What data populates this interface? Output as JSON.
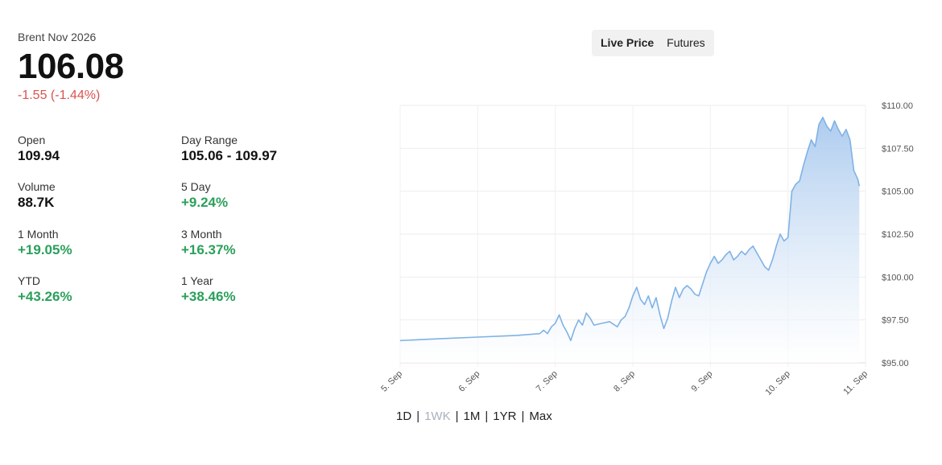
{
  "header": {
    "instrument": "Brent Nov 2026",
    "price": "106.08",
    "change": "-1.55 (-1.44%)",
    "change_color": "#d9534f"
  },
  "stats": [
    {
      "label": "Open",
      "value": "109.94",
      "positive": false
    },
    {
      "label": "Day Range",
      "value": "105.06 - 109.97",
      "positive": false
    },
    {
      "label": "Volume",
      "value": "88.7K",
      "positive": false
    },
    {
      "label": "5 Day",
      "value": "+9.24%",
      "positive": true
    },
    {
      "label": "1 Month",
      "value": "+19.05%",
      "positive": true
    },
    {
      "label": "3 Month",
      "value": "+16.37%",
      "positive": true
    },
    {
      "label": "YTD",
      "value": "+43.26%",
      "positive": true
    },
    {
      "label": "1 Year",
      "value": "+38.46%",
      "positive": true
    }
  ],
  "toggle": {
    "options": [
      "Live Price",
      "Futures"
    ],
    "active": "Live Price"
  },
  "ranges": {
    "options": [
      "1D",
      "1WK",
      "1M",
      "1YR",
      "Max"
    ],
    "active": "1WK"
  },
  "chart_data": {
    "type": "area",
    "title": "",
    "xlabel": "",
    "ylabel": "",
    "x_ticks": [
      "5. Sep",
      "6. Sep",
      "7. Sep",
      "8. Sep",
      "9. Sep",
      "10. Sep",
      "11. Sep"
    ],
    "x_range": [
      5.0,
      11.0
    ],
    "y_ticks": [
      "$95.00",
      "$97.50",
      "$100.00",
      "$102.50",
      "$105.00",
      "$107.50",
      "$110.00"
    ],
    "ylim": [
      95,
      110
    ],
    "grid": true,
    "line_color": "#7fb2e5",
    "fill_color": "#d6e6f7",
    "series": [
      {
        "x": [
          5.0,
          5.5,
          6.0,
          6.5,
          6.8,
          6.85,
          6.9,
          6.95,
          7.0,
          7.05,
          7.1,
          7.15,
          7.2,
          7.25,
          7.3,
          7.35,
          7.4,
          7.45,
          7.5,
          7.6,
          7.7,
          7.8,
          7.85,
          7.9,
          7.95,
          8.0,
          8.05,
          8.1,
          8.15,
          8.2,
          8.25,
          8.3,
          8.35,
          8.4,
          8.45,
          8.5,
          8.55,
          8.6,
          8.65,
          8.7,
          8.75,
          8.8,
          8.85,
          8.9,
          8.95,
          9.0,
          9.05,
          9.1,
          9.15,
          9.2,
          9.25,
          9.3,
          9.35,
          9.4,
          9.45,
          9.5,
          9.55,
          9.6,
          9.65,
          9.7,
          9.75,
          9.8,
          9.85,
          9.9,
          9.95,
          10.0,
          10.05,
          10.1,
          10.15,
          10.2,
          10.25,
          10.3,
          10.35,
          10.4,
          10.45,
          10.5,
          10.55,
          10.6,
          10.65,
          10.7,
          10.75,
          10.8,
          10.85,
          10.9,
          10.92
        ],
        "y": [
          96.3,
          96.4,
          96.5,
          96.6,
          96.7,
          96.9,
          96.7,
          97.1,
          97.3,
          97.8,
          97.2,
          96.8,
          96.3,
          97.0,
          97.5,
          97.2,
          97.9,
          97.6,
          97.2,
          97.3,
          97.4,
          97.1,
          97.5,
          97.7,
          98.2,
          98.9,
          99.4,
          98.7,
          98.4,
          98.9,
          98.2,
          98.8,
          97.8,
          97.0,
          97.6,
          98.6,
          99.4,
          98.8,
          99.3,
          99.5,
          99.3,
          99.0,
          98.9,
          99.6,
          100.3,
          100.8,
          101.2,
          100.8,
          101.0,
          101.3,
          101.5,
          101.0,
          101.2,
          101.5,
          101.3,
          101.6,
          101.8,
          101.4,
          101.0,
          100.6,
          100.4,
          101.0,
          101.8,
          102.5,
          102.1,
          102.3,
          105.0,
          105.4,
          105.6,
          106.5,
          107.3,
          108.0,
          107.6,
          108.9,
          109.3,
          108.8,
          108.5,
          109.1,
          108.6,
          108.2,
          108.6,
          108.0,
          106.2,
          105.7,
          105.3
        ]
      }
    ]
  }
}
